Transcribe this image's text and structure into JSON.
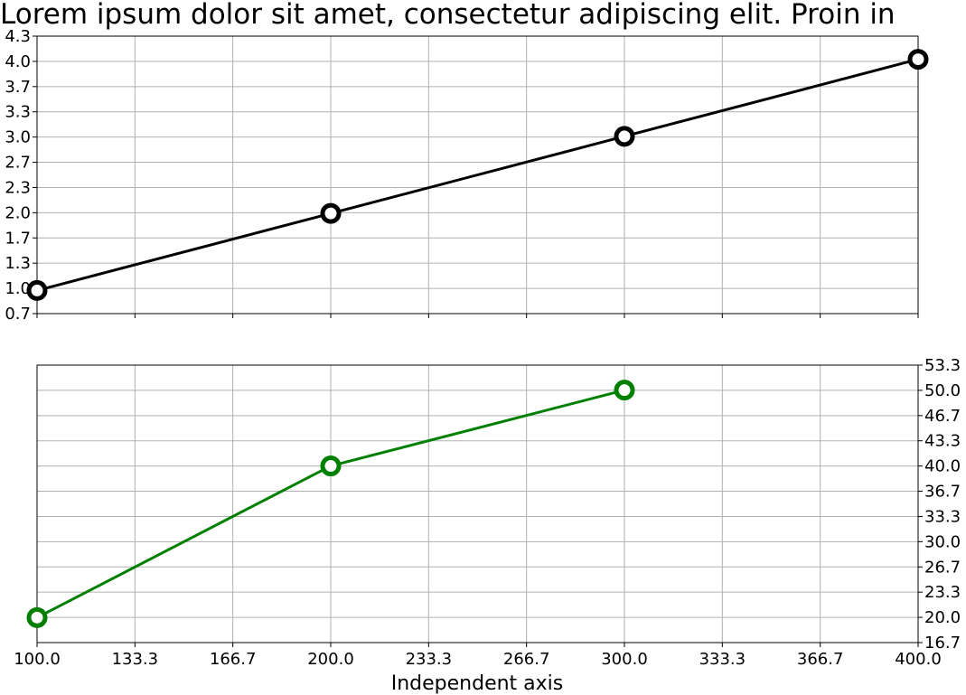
{
  "title": "Lorem ipsum dolor sit amet, consectetur adipiscing elit. Proin in",
  "xlabel": "Independent axis",
  "colors": {
    "top_series": "#000000",
    "bottom_series": "#008000",
    "grid": "#b0b0b0"
  },
  "chart_data": [
    {
      "type": "line",
      "panel": "top",
      "grid": true,
      "y_axis_side": "left",
      "xlim": [
        100,
        400
      ],
      "ylim": [
        0.7,
        4.3
      ],
      "x_ticks": [
        "100.0",
        "133.3",
        "166.7",
        "200.0",
        "233.3",
        "266.7",
        "300.0",
        "333.3",
        "366.7",
        "400.0"
      ],
      "y_ticks": [
        "0.7",
        "1.0",
        "1.3",
        "1.7",
        "2.0",
        "2.3",
        "2.7",
        "3.0",
        "3.3",
        "3.7",
        "4.0",
        "4.3"
      ],
      "series": [
        {
          "x": [
            100,
            200,
            300,
            400
          ],
          "values": [
            1,
            2,
            3,
            4
          ],
          "marker": "open-circle"
        }
      ]
    },
    {
      "type": "line",
      "panel": "bottom",
      "grid": true,
      "y_axis_side": "right",
      "xlim": [
        100,
        400
      ],
      "ylim": [
        16.7,
        53.3
      ],
      "x_ticks": [
        "100.0",
        "133.3",
        "166.7",
        "200.0",
        "233.3",
        "266.7",
        "300.0",
        "333.3",
        "366.7",
        "400.0"
      ],
      "y_ticks": [
        "16.7",
        "20.0",
        "23.3",
        "26.7",
        "30.0",
        "33.3",
        "36.7",
        "40.0",
        "43.3",
        "46.7",
        "50.0",
        "53.3"
      ],
      "series": [
        {
          "x": [
            100,
            200,
            300
          ],
          "values": [
            20,
            40,
            50
          ],
          "marker": "open-circle"
        }
      ]
    }
  ]
}
